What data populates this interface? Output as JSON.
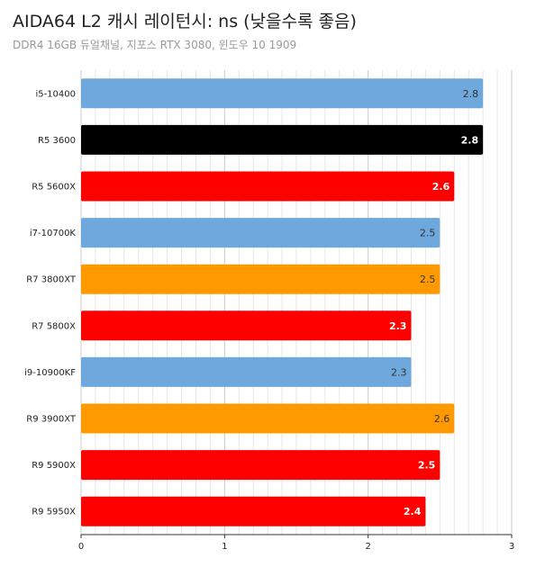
{
  "chart_data": {
    "type": "bar",
    "orientation": "horizontal",
    "title": "AIDA64 L2 캐시 레이턴시: ns (낮을수록 좋음)",
    "subtitle": "DDR4 16GB 듀얼채널, 지포스 RTX 3080, 윈도우 10 1909",
    "categories": [
      "i5-10400",
      "R5 3600",
      "R5 5600X",
      "i7-10700K",
      "R7 3800XT",
      "R7 5800X",
      "i9-10900KF",
      "R9 3900XT",
      "R9 5900X",
      "R9 5950X"
    ],
    "values": [
      2.8,
      2.8,
      2.6,
      2.5,
      2.5,
      2.3,
      2.3,
      2.6,
      2.5,
      2.4
    ],
    "value_labels": [
      "2.8",
      "2.8",
      "2.6",
      "2.5",
      "2.5",
      "2.3",
      "2.3",
      "2.6",
      "2.5",
      "2.4"
    ],
    "bar_colors": [
      "#6fa8dc",
      "#000000",
      "#ff0000",
      "#6fa8dc",
      "#ff9900",
      "#ff0000",
      "#6fa8dc",
      "#ff9900",
      "#ff0000",
      "#ff0000"
    ],
    "label_colors": [
      "#333333",
      "#ffffff",
      "#ffffff",
      "#333333",
      "#333333",
      "#ffffff",
      "#333333",
      "#333333",
      "#ffffff",
      "#ffffff"
    ],
    "label_bold": [
      false,
      true,
      true,
      false,
      false,
      true,
      false,
      false,
      true,
      true
    ],
    "xlim": [
      0,
      3
    ],
    "xticks": [
      "0",
      "1",
      "2",
      "3"
    ],
    "grid": true
  }
}
